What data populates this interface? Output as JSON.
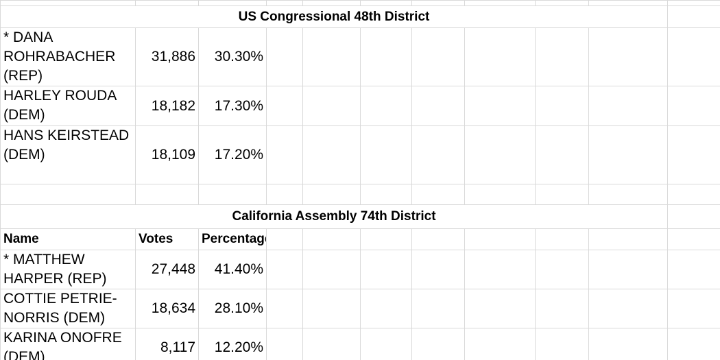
{
  "sections": [
    {
      "title": "US Congressional 48th District",
      "rows": [
        [
          "* DANA ROHRABACHER (REP)",
          "31,886",
          "30.30%"
        ],
        [
          "HARLEY ROUDA (DEM)",
          "18,182",
          "17.30%"
        ],
        [
          "HANS KEIRSTEAD (DEM)",
          "18,109",
          "17.20%"
        ]
      ]
    },
    {
      "title": "California Assembly 74th District",
      "header": [
        "Name",
        "Votes",
        "Percentage"
      ],
      "rows": [
        [
          "* MATTHEW HARPER (REP)",
          "27,448",
          "41.40%"
        ],
        [
          "COTTIE PETRIE-NORRIS (DEM)",
          "18,634",
          "28.10%"
        ],
        [
          "KARINA ONOFRE (DEM)",
          "8,117",
          "12.20%"
        ]
      ]
    }
  ]
}
